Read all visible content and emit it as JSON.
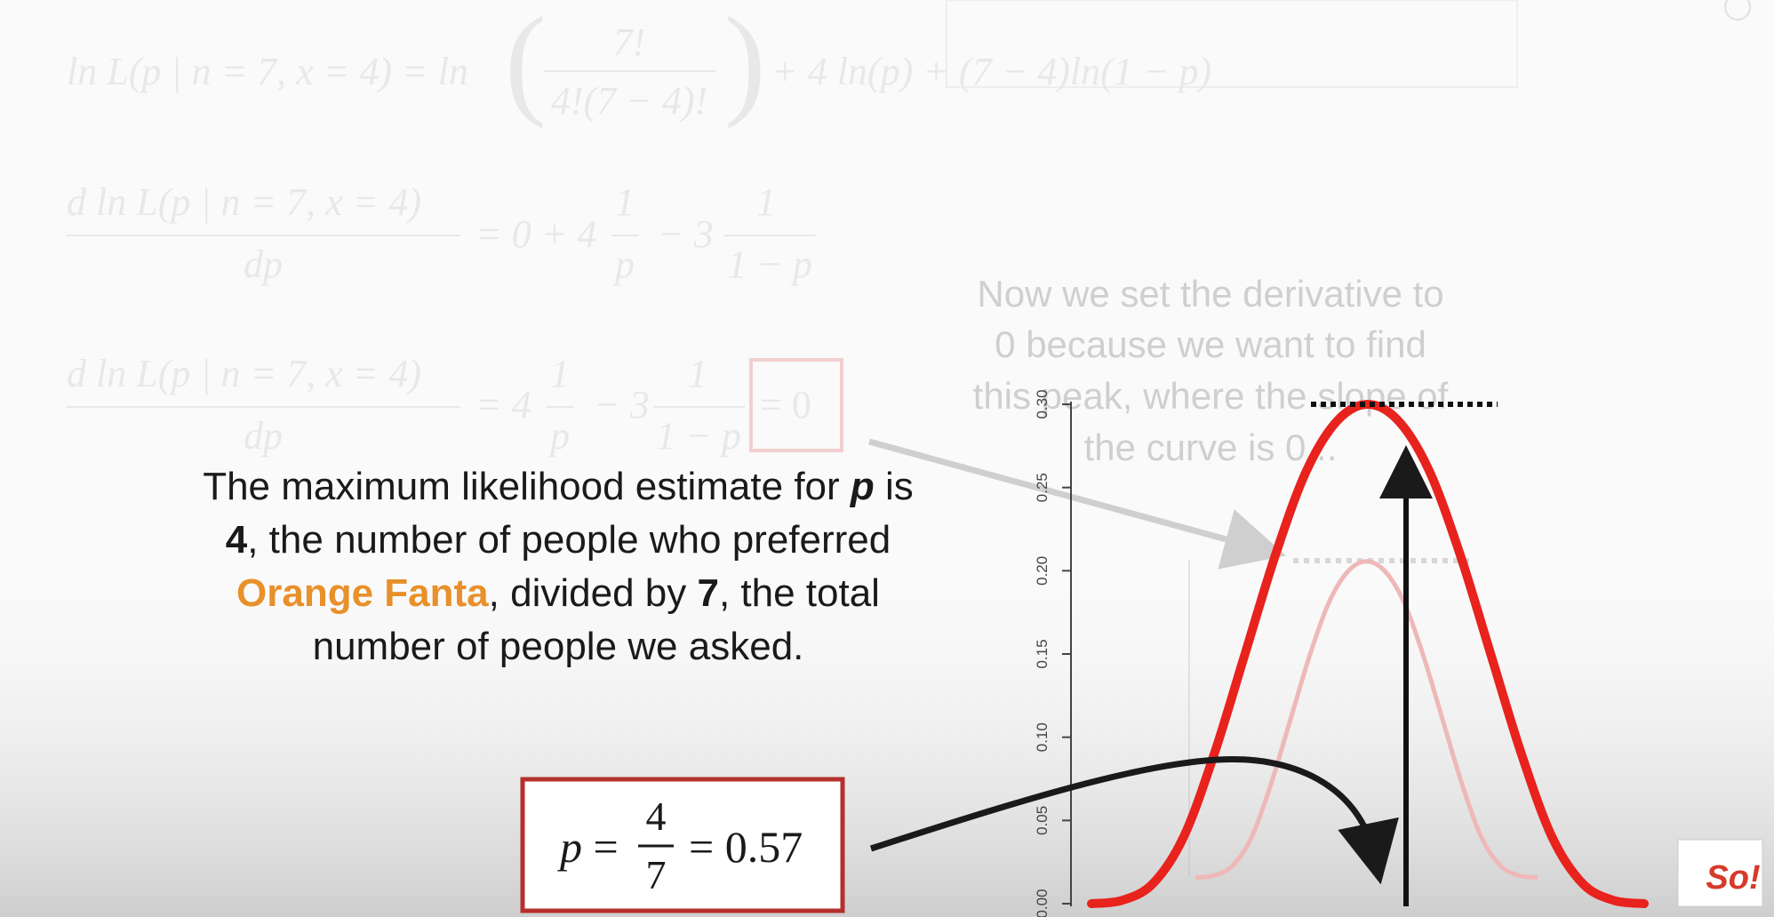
{
  "colors": {
    "background": "#fafafa",
    "faded_text": "#e8e8e8",
    "faded_caption": "#cfcfcf",
    "highlight_box": "#f2cfcf",
    "answer_box": "#b5302c",
    "curve_main": "#e8221c",
    "curve_faded": "#efb8b8",
    "orange_text": "#e8902a",
    "black": "#1a1a1a",
    "arrow_gray": "#cfcfcf",
    "axis_text": "#444444"
  },
  "equations": {
    "eq1": {
      "lhs": "ln L(p | n = 7, x = 4) = ln",
      "frac_num": "7!",
      "frac_den": "4!(7 − 4)!",
      "rhs": "+ 4 ln(p) + (7 − 4)ln(1 − p)"
    },
    "eq2": {
      "lhs_num": "d ln L(p | n = 7, x = 4)",
      "lhs_den": "dp",
      "eq_part1": "= 0 + 4",
      "f1_num": "1",
      "f1_den": "p",
      "minus": "− 3",
      "f2_num": "1",
      "f2_den": "1 − p"
    },
    "eq3": {
      "lhs_num": "d ln L(p | n = 7, x = 4)",
      "lhs_den": "dp",
      "eq_part1": "= 4",
      "f1_num": "1",
      "f1_den": "p",
      "minus": "− 3",
      "f2_num": "1",
      "f2_den": "1 − p",
      "boxed": "= 0"
    }
  },
  "caption": {
    "line1": "Now we set the derivative to",
    "line2": "0 because we want to find",
    "line3": "this peak, where the slope of",
    "line4": "the curve is 0..."
  },
  "statement": {
    "l1_a": "The maximum likelihood estimate for ",
    "l1_p": "p",
    "l1_b": " is",
    "l2_4": "4",
    "l2_rest": ", the number of people who preferred",
    "l3_orange": "Orange Fanta",
    "l3_mid": ", divided by ",
    "l3_7": "7",
    "l3_rest": ", the total",
    "l4": "number of people we asked."
  },
  "answer": {
    "lhs": "p =",
    "num": "4",
    "den": "7",
    "rhs": "= 0.57"
  },
  "chart_data": {
    "type": "line",
    "yticks": [
      "0.00",
      "0.05",
      "0.10",
      "0.15",
      "0.20",
      "0.25",
      "0.30"
    ],
    "ylim": [
      0,
      0.3
    ],
    "series": [
      {
        "values": [
          0.0,
          0.002,
          0.012,
          0.04,
          0.09,
          0.15,
          0.21,
          0.26,
          0.29,
          0.3,
          0.29,
          0.26,
          0.21,
          0.15,
          0.09,
          0.04,
          0.012,
          0.002,
          0.0
        ]
      }
    ],
    "peak_value": 0.3
  },
  "logo": {
    "text": "So!"
  }
}
